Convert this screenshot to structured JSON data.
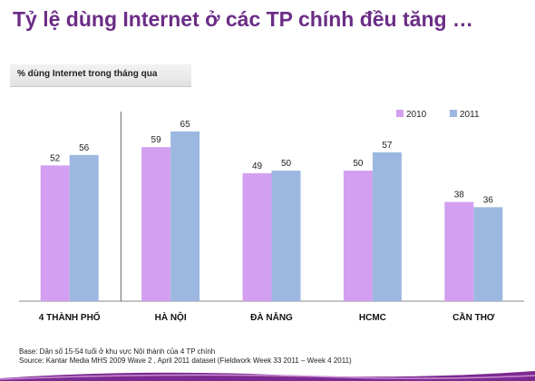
{
  "title": "Tỷ lệ dùng Internet ở các TP chính đều tăng …",
  "subtitle": "% dùng Internet trong tháng qua",
  "footer": {
    "base": "Base: Dân số 15-54 tuổi ở khu vực Nội thành của 4 TP chính",
    "source": "Source: Kantar Media MHS 2009 Wave 2 , April 2011 dataset (Fieldwork Week 33 2011 – Week 4 2011)"
  },
  "colors": {
    "title": "#6b2d86",
    "series_2010": "#d39ff0",
    "series_2011": "#9db8e0"
  },
  "chart_data": {
    "type": "bar",
    "categories": [
      "4 THÀNH PHỐ",
      "HÀ NỘI",
      "ĐÀ NẴNG",
      "HCMC",
      "CẦN THƠ"
    ],
    "series": [
      {
        "name": "2010",
        "values": [
          52,
          59,
          49,
          50,
          38
        ]
      },
      {
        "name": "2011",
        "values": [
          56,
          65,
          50,
          57,
          36
        ]
      }
    ],
    "ylim": [
      0,
      82
    ],
    "legend": "top-right",
    "grid": false
  }
}
